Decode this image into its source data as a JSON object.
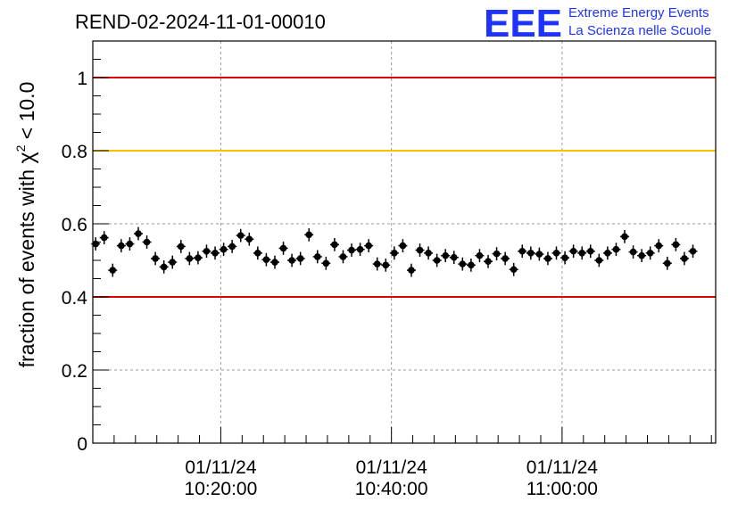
{
  "header": {
    "run_title": "REND-02-2024-11-01-00010",
    "logo": {
      "mark": "EEE",
      "line1": "Extreme Energy Events",
      "line2": "La Scienza nelle Scuole",
      "color": "#1f33ff"
    }
  },
  "chart_data": {
    "type": "scatter",
    "title": "REND-02-2024-11-01-00010",
    "xlabel": "",
    "ylabel_prefix": "fraction of events with ",
    "ylabel_symbol": "χ",
    "ylabel_sup": "2",
    "ylabel_suffix": " < 10.0",
    "x_unit": "time",
    "xlim": [
      "2024-11-01 10:05:00",
      "2024-11-01 11:18:00"
    ],
    "ylim": [
      0,
      1.1
    ],
    "yticks": [
      0,
      0.2,
      0.4,
      0.6,
      0.8,
      1
    ],
    "ytick_labels": [
      "0",
      "0.2",
      "0.4",
      "0.6",
      "0.8",
      "1"
    ],
    "xticks": [
      {
        "time": "2024-11-01 10:20:00",
        "date": "01/11/24",
        "clock": "10:20:00"
      },
      {
        "time": "2024-11-01 10:40:00",
        "date": "01/11/24",
        "clock": "10:40:00"
      },
      {
        "time": "2024-11-01 11:00:00",
        "date": "01/11/24",
        "clock": "11:00:00"
      }
    ],
    "grid": true,
    "reference_lines": [
      {
        "y": 1.0,
        "color": "#e00000"
      },
      {
        "y": 0.8,
        "color": "#ffc000"
      },
      {
        "y": 0.4,
        "color": "#e00000"
      }
    ],
    "series": [
      {
        "marker_color": "#000000",
        "error": 0.018,
        "points": [
          [
            "10:05:20",
            0.545
          ],
          [
            "10:06:20",
            0.562
          ],
          [
            "10:07:20",
            0.473
          ],
          [
            "10:08:20",
            0.54
          ],
          [
            "10:09:20",
            0.545
          ],
          [
            "10:10:20",
            0.573
          ],
          [
            "10:11:20",
            0.55
          ],
          [
            "10:12:20",
            0.505
          ],
          [
            "10:13:20",
            0.482
          ],
          [
            "10:14:20",
            0.495
          ],
          [
            "10:15:20",
            0.538
          ],
          [
            "10:16:20",
            0.505
          ],
          [
            "10:17:20",
            0.507
          ],
          [
            "10:18:20",
            0.525
          ],
          [
            "10:19:20",
            0.52
          ],
          [
            "10:20:20",
            0.53
          ],
          [
            "10:21:20",
            0.538
          ],
          [
            "10:22:20",
            0.568
          ],
          [
            "10:23:20",
            0.558
          ],
          [
            "10:24:20",
            0.52
          ],
          [
            "10:25:20",
            0.502
          ],
          [
            "10:26:20",
            0.495
          ],
          [
            "10:27:20",
            0.533
          ],
          [
            "10:28:20",
            0.5
          ],
          [
            "10:29:20",
            0.505
          ],
          [
            "10:30:20",
            0.57
          ],
          [
            "10:31:20",
            0.51
          ],
          [
            "10:32:20",
            0.492
          ],
          [
            "10:33:20",
            0.543
          ],
          [
            "10:34:20",
            0.51
          ],
          [
            "10:35:20",
            0.528
          ],
          [
            "10:36:20",
            0.53
          ],
          [
            "10:37:20",
            0.54
          ],
          [
            "10:38:20",
            0.49
          ],
          [
            "10:39:20",
            0.487
          ],
          [
            "10:40:20",
            0.52
          ],
          [
            "10:41:20",
            0.54
          ],
          [
            "10:42:20",
            0.473
          ],
          [
            "10:43:20",
            0.528
          ],
          [
            "10:44:20",
            0.52
          ],
          [
            "10:45:20",
            0.5
          ],
          [
            "10:46:20",
            0.513
          ],
          [
            "10:47:20",
            0.508
          ],
          [
            "10:48:20",
            0.49
          ],
          [
            "10:49:20",
            0.487
          ],
          [
            "10:50:20",
            0.513
          ],
          [
            "10:51:20",
            0.497
          ],
          [
            "10:52:20",
            0.518
          ],
          [
            "10:53:20",
            0.505
          ],
          [
            "10:54:20",
            0.475
          ],
          [
            "10:55:20",
            0.525
          ],
          [
            "10:56:20",
            0.52
          ],
          [
            "10:57:20",
            0.517
          ],
          [
            "10:58:20",
            0.505
          ],
          [
            "10:59:20",
            0.52
          ],
          [
            "11:00:20",
            0.507
          ],
          [
            "11:01:20",
            0.525
          ],
          [
            "11:02:20",
            0.52
          ],
          [
            "11:03:20",
            0.525
          ],
          [
            "11:04:20",
            0.5
          ],
          [
            "11:05:20",
            0.52
          ],
          [
            "11:06:20",
            0.53
          ],
          [
            "11:07:20",
            0.565
          ],
          [
            "11:08:20",
            0.523
          ],
          [
            "11:09:20",
            0.513
          ],
          [
            "11:10:20",
            0.52
          ],
          [
            "11:11:20",
            0.54
          ],
          [
            "11:12:20",
            0.492
          ],
          [
            "11:13:20",
            0.543
          ],
          [
            "11:14:20",
            0.505
          ],
          [
            "11:15:20",
            0.525
          ]
        ]
      }
    ]
  }
}
